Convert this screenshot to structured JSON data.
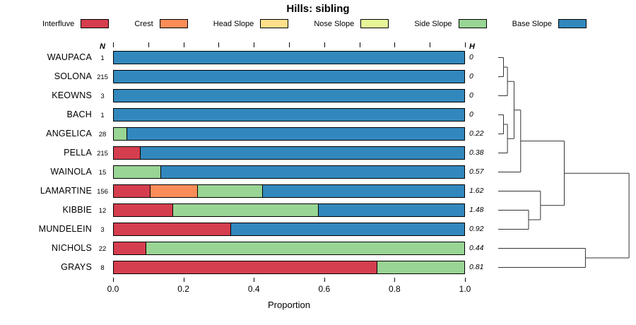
{
  "title": "Hills: sibling",
  "legend": [
    {
      "label": "Interfluve",
      "color": "#D53E4F"
    },
    {
      "label": "Crest",
      "color": "#FC8D59"
    },
    {
      "label": "Head Slope",
      "color": "#FEE08B"
    },
    {
      "label": "Nose Slope",
      "color": "#E6F598"
    },
    {
      "label": "Side Slope",
      "color": "#99D594"
    },
    {
      "label": "Base Slope",
      "color": "#3288BD"
    }
  ],
  "columns": {
    "n_header": "N",
    "h_header": "H"
  },
  "xlabel": "Proportion",
  "x_ticks": [
    "0.0",
    "0.2",
    "0.4",
    "0.6",
    "0.8",
    "1.0"
  ],
  "chart_data": {
    "type": "bar",
    "orientation": "horizontal",
    "stacked": true,
    "title": "Hills: sibling",
    "xlabel": "Proportion",
    "xlim": [
      0,
      1
    ],
    "categories": [
      "Interfluve",
      "Crest",
      "Head Slope",
      "Nose Slope",
      "Side Slope",
      "Base Slope"
    ],
    "rows": [
      {
        "name": "WAUPACA",
        "n": "1",
        "h": "0",
        "segments": {
          "Base Slope": 1.0
        }
      },
      {
        "name": "SOLONA",
        "n": "215",
        "h": "0",
        "segments": {
          "Base Slope": 1.0
        }
      },
      {
        "name": "KEOWNS",
        "n": "3",
        "h": "0",
        "segments": {
          "Base Slope": 1.0
        }
      },
      {
        "name": "BACH",
        "n": "1",
        "h": "0",
        "segments": {
          "Base Slope": 1.0
        }
      },
      {
        "name": "ANGELICA",
        "n": "28",
        "h": "0.22",
        "segments": {
          "Side Slope": 0.036,
          "Base Slope": 0.964
        }
      },
      {
        "name": "PELLA",
        "n": "215",
        "h": "0.38",
        "segments": {
          "Interfluve": 0.074,
          "Base Slope": 0.926
        }
      },
      {
        "name": "WAINOLA",
        "n": "15",
        "h": "0.57",
        "segments": {
          "Side Slope": 0.133,
          "Base Slope": 0.867
        }
      },
      {
        "name": "LAMARTINE",
        "n": "156",
        "h": "1.62",
        "segments": {
          "Interfluve": 0.103,
          "Crest": 0.135,
          "Side Slope": 0.186,
          "Base Slope": 0.576
        }
      },
      {
        "name": "KIBBIE",
        "n": "12",
        "h": "1.48",
        "segments": {
          "Interfluve": 0.167,
          "Side Slope": 0.416,
          "Base Slope": 0.417
        }
      },
      {
        "name": "MUNDELEIN",
        "n": "3",
        "h": "0.92",
        "segments": {
          "Interfluve": 0.333,
          "Base Slope": 0.667
        }
      },
      {
        "name": "NICHOLS",
        "n": "22",
        "h": "0.44",
        "segments": {
          "Interfluve": 0.091,
          "Side Slope": 0.909
        }
      },
      {
        "name": "GRAYS",
        "n": "8",
        "h": "0.81",
        "segments": {
          "Interfluve": 0.75,
          "Side Slope": 0.25
        }
      }
    ]
  },
  "dendrogram": {
    "segments": [
      [
        0,
        0,
        0.04,
        0
      ],
      [
        0,
        1,
        0.04,
        1
      ],
      [
        0.04,
        0,
        0.04,
        1
      ],
      [
        0.04,
        0.5,
        0.07,
        0.5
      ],
      [
        0,
        2,
        0.07,
        2
      ],
      [
        0.07,
        0.5,
        0.07,
        2
      ],
      [
        0,
        3,
        0.04,
        3
      ],
      [
        0,
        4,
        0.04,
        4
      ],
      [
        0.04,
        3,
        0.04,
        4
      ],
      [
        0.04,
        3.5,
        0.07,
        3.5
      ],
      [
        0,
        5,
        0.07,
        5
      ],
      [
        0.07,
        3.5,
        0.07,
        5
      ],
      [
        0.07,
        1.25,
        0.12,
        1.25
      ],
      [
        0.07,
        4.25,
        0.12,
        4.25
      ],
      [
        0.12,
        1.25,
        0.12,
        4.25
      ],
      [
        0.12,
        2.75,
        0.17,
        2.75
      ],
      [
        0,
        6,
        0.17,
        6
      ],
      [
        0.17,
        2.75,
        0.17,
        6
      ],
      [
        0,
        8,
        0.23,
        8
      ],
      [
        0,
        9,
        0.23,
        9
      ],
      [
        0.23,
        8,
        0.23,
        9
      ],
      [
        0,
        7,
        0.32,
        7
      ],
      [
        0.23,
        8.5,
        0.32,
        8.5
      ],
      [
        0.32,
        7,
        0.32,
        8.5
      ],
      [
        0.17,
        4.375,
        0.5,
        4.375
      ],
      [
        0.32,
        7.75,
        0.5,
        7.75
      ],
      [
        0.5,
        4.375,
        0.5,
        7.75
      ],
      [
        0,
        10,
        0.66,
        10
      ],
      [
        0,
        11,
        0.66,
        11
      ],
      [
        0.66,
        10,
        0.66,
        11
      ],
      [
        0.5,
        6.0625,
        0.99,
        6.0625
      ],
      [
        0.66,
        10.5,
        0.99,
        10.5
      ],
      [
        0.99,
        6.0625,
        0.99,
        10.5
      ]
    ]
  }
}
